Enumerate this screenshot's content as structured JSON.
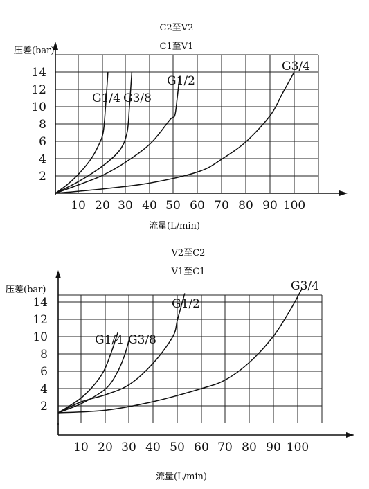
{
  "chart_data": [
    {
      "type": "line",
      "titles": [
        "C2至V2",
        "C1至V1"
      ],
      "ylabel": "压差(bar)",
      "xlabel": "流量(L/min)",
      "xlim": [
        0,
        110
      ],
      "ylim": [
        0,
        16
      ],
      "x_ticks": [
        "10",
        "20",
        "30",
        "40",
        "50",
        "60",
        "70",
        "80",
        "90",
        "100"
      ],
      "y_ticks": [
        "2",
        "4",
        "6",
        "8",
        "10",
        "12",
        "14"
      ],
      "grid": true,
      "series": [
        {
          "name": "G1/4",
          "points": [
            [
              0,
              0
            ],
            [
              5,
              1
            ],
            [
              10,
              2.3
            ],
            [
              15,
              4
            ],
            [
              18,
              5.5
            ],
            [
              20,
              7
            ],
            [
              21,
              10
            ],
            [
              22,
              14
            ]
          ]
        },
        {
          "name": "G3/8",
          "points": [
            [
              0,
              0
            ],
            [
              10,
              1.4
            ],
            [
              20,
              3.2
            ],
            [
              27,
              5
            ],
            [
              30,
              7
            ],
            [
              31,
              10
            ],
            [
              32,
              14
            ]
          ]
        },
        {
          "name": "G1/2",
          "points": [
            [
              0,
              0
            ],
            [
              10,
              1
            ],
            [
              20,
              2.1
            ],
            [
              30,
              3.7
            ],
            [
              40,
              5.8
            ],
            [
              48,
              8.5
            ],
            [
              50,
              9
            ],
            [
              51,
              11
            ],
            [
              52,
              13.5
            ]
          ]
        },
        {
          "name": "G3/4",
          "points": [
            [
              0,
              0
            ],
            [
              20,
              0.5
            ],
            [
              40,
              1.2
            ],
            [
              60,
              2.5
            ],
            [
              70,
              4
            ],
            [
              80,
              6
            ],
            [
              90,
              9
            ],
            [
              95,
              11.5
            ],
            [
              100,
              14
            ]
          ]
        }
      ]
    },
    {
      "type": "line",
      "titles": [
        "V2至C2",
        "V1至C1"
      ],
      "ylabel": "压差(bar)",
      "xlabel": "流量(L/min)",
      "xlim": [
        0,
        110
      ],
      "ylim": [
        0,
        17
      ],
      "x_ticks": [
        "10",
        "20",
        "30",
        "40",
        "50",
        "60",
        "70",
        "80",
        "90",
        "100"
      ],
      "y_ticks": [
        "2",
        "4",
        "6",
        "8",
        "10",
        "12",
        "14"
      ],
      "grid": true,
      "series": [
        {
          "name": "G1/4",
          "points": [
            [
              0,
              1.2
            ],
            [
              10,
              3
            ],
            [
              18,
              5.5
            ],
            [
              22,
              8
            ],
            [
              25,
              10.5
            ]
          ]
        },
        {
          "name": "G3/8",
          "points": [
            [
              0,
              1.2
            ],
            [
              10,
              2.3
            ],
            [
              20,
              4
            ],
            [
              25,
              6
            ],
            [
              28,
              8
            ],
            [
              30,
              10
            ]
          ]
        },
        {
          "name": "G1/2",
          "points": [
            [
              0,
              1.2
            ],
            [
              10,
              2.5
            ],
            [
              20,
              3.3
            ],
            [
              30,
              4.5
            ],
            [
              40,
              7
            ],
            [
              48,
              10
            ],
            [
              50,
              12
            ],
            [
              53,
              15
            ]
          ]
        },
        {
          "name": "G3/4",
          "points": [
            [
              0,
              1.2
            ],
            [
              20,
              1.5
            ],
            [
              40,
              2.5
            ],
            [
              60,
              4
            ],
            [
              70,
              5
            ],
            [
              80,
              7
            ],
            [
              90,
              10
            ],
            [
              97,
              13
            ],
            [
              102,
              15.5
            ]
          ]
        }
      ]
    }
  ]
}
